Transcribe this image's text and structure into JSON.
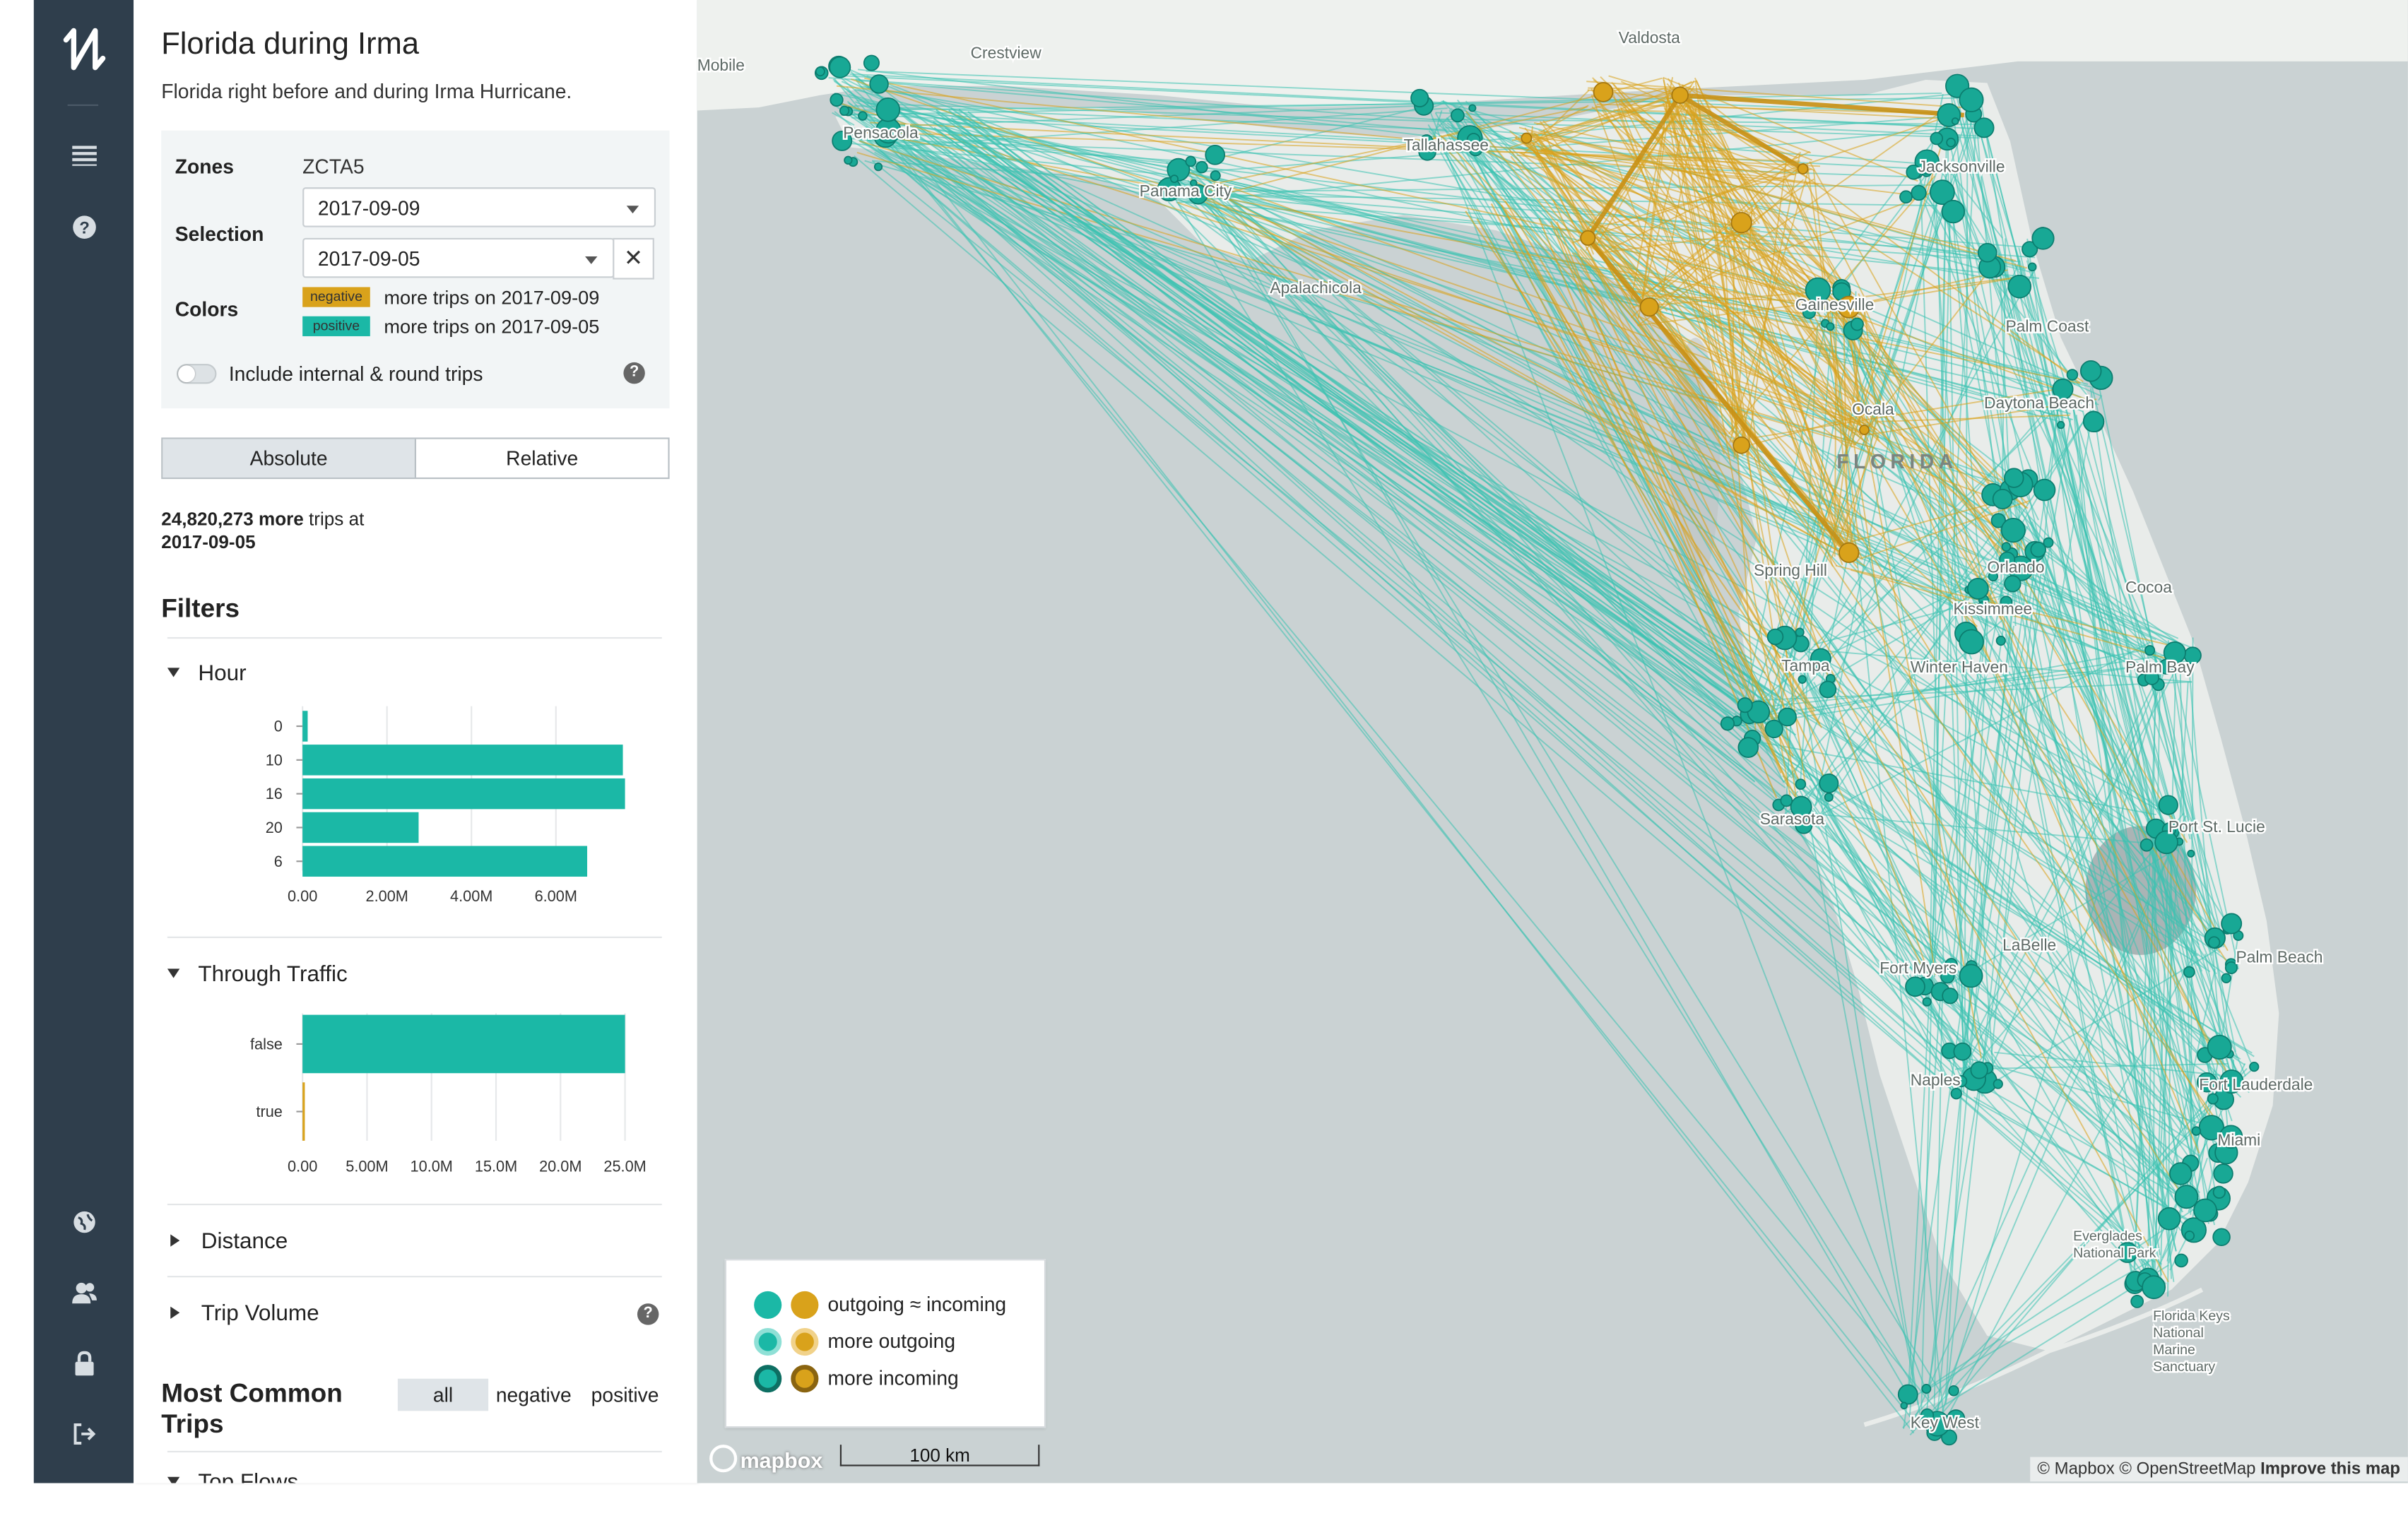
{
  "sidebar_nav": {
    "icons": [
      "logo-flow-icon",
      "menu-icon",
      "help-icon",
      "globe-icon",
      "users-icon",
      "lock-icon",
      "logout-icon"
    ]
  },
  "panel": {
    "title": "Florida during Irma",
    "subtitle": "Florida right before and during Irma Hurricane.",
    "zones_label": "Zones",
    "zones_value": "ZCTA5",
    "selection_label": "Selection",
    "selection_primary": "2017-09-09",
    "selection_compare": "2017-09-05",
    "clear_symbol": "✕",
    "colors_label": "Colors",
    "negative_badge": "negative",
    "negative_text": "more trips on 2017-09-09",
    "positive_badge": "positive",
    "positive_text": "more trips on 2017-09-05",
    "internal_toggle_label": "Include internal & round trips",
    "internal_toggle_on": false,
    "tab_absolute": "Absolute",
    "tab_relative": "Relative",
    "active_tab": "Absolute",
    "stat_value": "24,820,273",
    "stat_more": "more",
    "stat_suffix": "trips at",
    "stat_date": "2017-09-05",
    "filters_heading": "Filters",
    "hour_section": "Hour",
    "through_traffic_section": "Through Traffic",
    "distance_section": "Distance",
    "trip_volume_section": "Trip Volume",
    "most_common_heading_line1": "Most Common",
    "most_common_heading_line2": "Trips",
    "segment_all": "all",
    "segment_negative": "negative",
    "segment_positive": "positive",
    "next_section_partial": "Top Flows"
  },
  "colors": {
    "negative": "#d9a21b",
    "positive": "#1bb8a6",
    "rail": "#2f3e4c"
  },
  "chart_data": [
    {
      "type": "bar",
      "orientation": "horizontal",
      "title": "Hour",
      "categories": [
        "0",
        "10",
        "16",
        "20",
        "6"
      ],
      "values": [
        120000,
        7450000,
        7500000,
        2700000,
        6620000
      ],
      "xticks": [
        "0.00",
        "2.00M",
        "4.00M",
        "6.00M"
      ],
      "xlim": [
        0,
        7500000
      ]
    },
    {
      "type": "bar",
      "orientation": "horizontal",
      "title": "Through Traffic",
      "categories": [
        "false",
        "true"
      ],
      "values": [
        25000000,
        150000
      ],
      "xticks": [
        "0.00",
        "5.00M",
        "10.0M",
        "15.0M",
        "20.0M",
        "25.0M"
      ],
      "xlim": [
        0,
        25000000
      ]
    }
  ],
  "map": {
    "labels": [
      "Mobile",
      "Crestview",
      "Valdosta",
      "Pensacola",
      "Tallahassee",
      "Panama City",
      "Jacksonville",
      "Apalachicola",
      "Gainesville",
      "Palm Coast",
      "Ocala",
      "FLORIDA",
      "Daytona Beach",
      "Orlando",
      "Kissimmee",
      "Spring Hill",
      "Cocoa",
      "Tampa",
      "Winter Haven",
      "Palm Bay",
      "Sarasota",
      "Port St. Lucie",
      "LaBelle",
      "Fort Myers",
      "Palm Beach",
      "Naples",
      "Fort Lauderdale",
      "Miami",
      "Everglades National Park",
      "Florida Keys National Marine Sanctuary",
      "Key West"
    ],
    "legend": {
      "row1": "outgoing ≈ incoming",
      "row2": "more outgoing",
      "row3": "more incoming"
    },
    "mapbox_logo": "mapbox",
    "scale_label": "100 km",
    "attribution": "© Mapbox © OpenStreetMap",
    "improve_link": "Improve this map"
  }
}
